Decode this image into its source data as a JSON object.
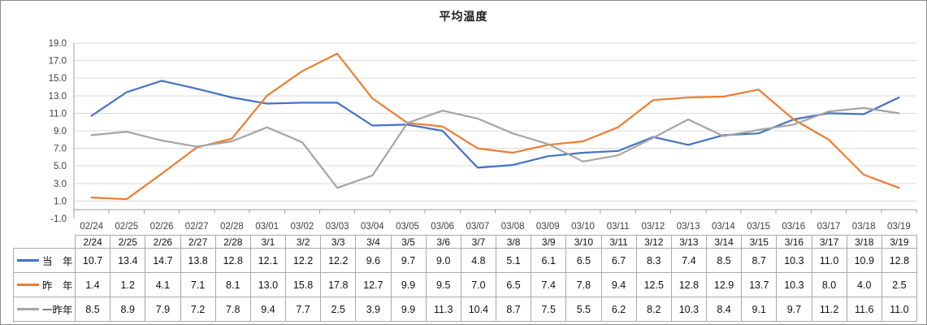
{
  "chart_data": {
    "type": "line",
    "title": "平均温度",
    "categories": [
      "02/24",
      "02/25",
      "02/26",
      "02/27",
      "02/28",
      "03/01",
      "03/02",
      "03/03",
      "03/04",
      "03/05",
      "03/06",
      "03/07",
      "03/08",
      "03/09",
      "03/10",
      "03/11",
      "03/12",
      "03/13",
      "03/14",
      "03/15",
      "03/16",
      "03/17",
      "03/18",
      "03/19"
    ],
    "series": [
      {
        "name": "当　年",
        "color": "#4472C4",
        "values": [
          10.7,
          13.4,
          14.7,
          13.8,
          12.8,
          12.1,
          12.2,
          12.2,
          9.6,
          9.7,
          9.0,
          4.8,
          5.1,
          6.1,
          6.5,
          6.7,
          8.3,
          7.4,
          8.5,
          8.7,
          10.3,
          11.0,
          10.9,
          12.8
        ]
      },
      {
        "name": "昨　年",
        "color": "#ED7D31",
        "values": [
          1.4,
          1.2,
          4.1,
          7.1,
          8.1,
          13.0,
          15.8,
          17.8,
          12.7,
          9.9,
          9.5,
          7.0,
          6.5,
          7.4,
          7.8,
          9.4,
          12.5,
          12.8,
          12.9,
          13.7,
          10.3,
          8.0,
          4.0,
          2.5
        ]
      },
      {
        "name": "一昨年",
        "color": "#A5A5A5",
        "values": [
          8.5,
          8.9,
          7.9,
          7.2,
          7.8,
          9.4,
          7.7,
          2.5,
          3.9,
          9.9,
          11.3,
          10.4,
          8.7,
          7.5,
          5.5,
          6.2,
          8.2,
          10.3,
          8.4,
          9.1,
          9.7,
          11.2,
          11.6,
          11.0
        ]
      }
    ],
    "ylim": [
      -1.0,
      19.0
    ],
    "ytick_step": 2.0,
    "ytick_decimals": 1,
    "value_decimals": 1,
    "axis_cross_y": 0,
    "grid": true,
    "legend_position": "data-table-left",
    "data_table": {
      "headers": [
        "2/24",
        "2/25",
        "2/26",
        "2/27",
        "2/28",
        "3/1",
        "3/2",
        "3/3",
        "3/4",
        "3/5",
        "3/6",
        "3/7",
        "3/8",
        "3/9",
        "3/10",
        "3/11",
        "3/12",
        "3/13",
        "3/14",
        "3/15",
        "3/16",
        "3/17",
        "3/18",
        "3/19"
      ]
    }
  }
}
